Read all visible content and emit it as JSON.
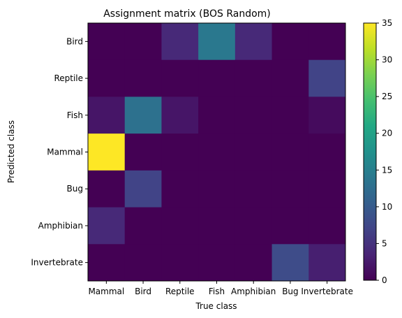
{
  "chart_data": {
    "type": "heatmap",
    "title": "Assignment matrix (BOS Random)",
    "xlabel": "True class",
    "ylabel": "Predicted class",
    "x_categories": [
      "Mammal",
      "Bird",
      "Reptile",
      "Fish",
      "Amphibian",
      "Bug",
      "Invertebrate"
    ],
    "y_categories": [
      "Bird",
      "Reptile",
      "Fish",
      "Mammal",
      "Bug",
      "Amphibian",
      "Invertebrate"
    ],
    "values": [
      [
        0,
        0,
        4,
        14,
        4,
        0,
        0
      ],
      [
        0,
        0,
        0,
        0,
        0,
        0,
        7
      ],
      [
        2,
        13,
        2,
        0,
        0,
        0,
        1
      ],
      [
        35,
        0,
        0,
        0,
        0,
        0,
        0
      ],
      [
        0,
        7,
        0,
        0,
        0,
        0,
        0
      ],
      [
        4,
        0,
        0,
        0,
        0,
        0,
        0
      ],
      [
        0,
        0,
        0,
        0,
        0,
        8,
        3
      ]
    ],
    "colorbar": {
      "colormap": "viridis",
      "min": 0,
      "max": 35,
      "ticks": [
        0,
        5,
        10,
        15,
        20,
        25,
        30,
        35
      ]
    }
  }
}
